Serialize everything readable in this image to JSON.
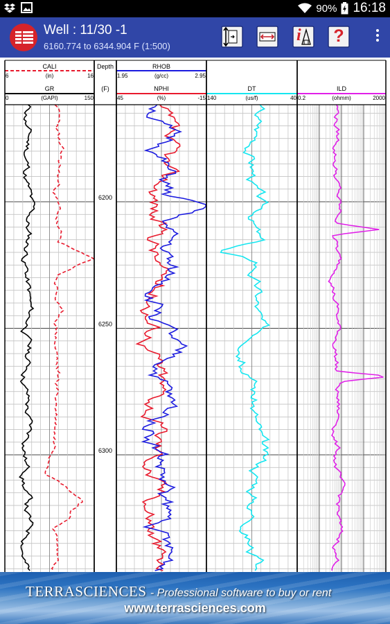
{
  "status_bar": {
    "battery": "90%",
    "time": "16:18",
    "icons": [
      "dropbox-icon",
      "image-icon",
      "wifi-icon",
      "battery-icon"
    ]
  },
  "app_bar": {
    "title": "Well : 11/30 -1",
    "subtitle": "6160.774 to 6344.904 F (1:500)",
    "buttons": [
      "vertical-scale-button",
      "horizontal-scale-button",
      "info-button",
      "help-button",
      "overflow-menu-button"
    ],
    "help_symbol": "?",
    "info_symbol": "i"
  },
  "log": {
    "depth_track": {
      "header_top": "Depth",
      "unit": "(F)",
      "ticks": [
        "6200",
        "6250",
        "6300"
      ],
      "tick_values": [
        6200,
        6250,
        6300
      ]
    },
    "depth_range": [
      6160.774,
      6344.904
    ],
    "tracks": [
      {
        "curves": [
          {
            "name": "CALI",
            "unit": "(in)",
            "left": "6",
            "right": "16",
            "color": "#e8192c",
            "dashed": true
          },
          {
            "name": "GR",
            "unit": "(GAPI)",
            "left": "0",
            "right": "150",
            "color": "#000000",
            "dashed": false
          }
        ]
      },
      {
        "curves": [
          {
            "name": "RHOB",
            "unit": "(g/cc)",
            "left": "1.95",
            "right": "2.95",
            "color": "#1a1adf",
            "dashed": false
          },
          {
            "name": "NPHI",
            "unit": "(%)",
            "left": "45",
            "right": "-15",
            "color": "#e8192c",
            "dashed": false
          }
        ]
      },
      {
        "curves": [
          {
            "name": "DT",
            "unit": "(us/f)",
            "left": "140",
            "right": "40",
            "color": "#14e6f0",
            "dashed": false
          }
        ]
      },
      {
        "curves": [
          {
            "name": "ILD",
            "unit": "(ohmm)",
            "left": "0.2",
            "right": "2000",
            "color": "#e020e8",
            "dashed": false
          }
        ]
      }
    ]
  },
  "footer": {
    "brand": "TERRASCIENCES",
    "tagline": "- Professional software to buy or rent",
    "url": "www.terrasciences.com"
  }
}
